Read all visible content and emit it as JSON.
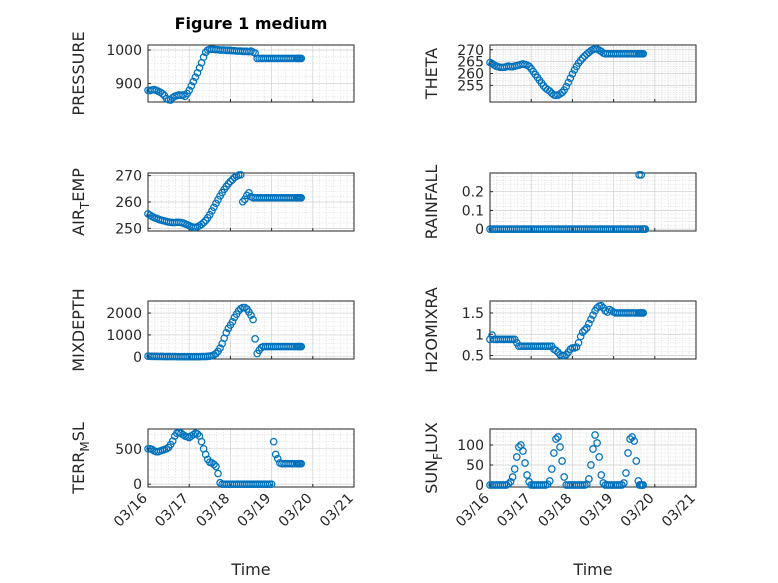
{
  "figure_title": "Figure 1 medium",
  "xlabel": "Time",
  "xtick_labels": [
    "03/16",
    "03/17",
    "03/18",
    "03/19",
    "03/20",
    "03/21"
  ],
  "colors": {
    "marker": "#0072BD",
    "axis": "#262626",
    "grid": "#dfdfdf"
  },
  "chart_data": [
    {
      "type": "scatter",
      "ylabel": "PRESSURE",
      "ylim": [
        845,
        1015
      ],
      "yticks": [
        900,
        1000
      ],
      "x_unit": "days since 03/16",
      "xlim": [
        0,
        5
      ],
      "x": [
        0.0,
        0.05,
        0.1,
        0.15,
        0.2,
        0.25,
        0.3,
        0.35,
        0.4,
        0.45,
        0.5,
        0.55,
        0.6,
        0.65,
        0.7,
        0.75,
        0.8,
        0.85,
        0.9,
        0.95,
        1.0,
        1.05,
        1.1,
        1.15,
        1.2,
        1.25,
        1.3,
        1.35,
        1.4,
        1.45,
        1.5,
        1.55,
        1.6,
        1.65,
        1.7,
        1.75,
        1.8,
        1.85,
        1.9,
        1.95,
        2.0,
        2.05,
        2.1,
        2.15,
        2.2,
        2.25,
        2.3,
        2.35,
        2.4,
        2.45,
        2.5,
        2.55,
        2.6,
        2.65,
        2.7,
        2.75,
        2.8,
        2.85,
        2.9,
        2.95,
        3.0,
        3.05,
        3.1,
        3.15,
        3.2,
        3.25,
        3.3,
        3.35,
        3.4,
        3.45,
        3.5,
        3.55,
        3.6,
        3.63,
        3.66,
        3.69,
        3.72
      ],
      "y": [
        880,
        879,
        881,
        882,
        880,
        877,
        874,
        870,
        864,
        855,
        852,
        851,
        858,
        862,
        864,
        866,
        865,
        866,
        862,
        870,
        880,
        893,
        906,
        919,
        932,
        947,
        962,
        979,
        993,
        1000,
        1002,
        1002,
        1002,
        1001,
        1001,
        1000,
        1000,
        1000,
        999,
        999,
        999,
        998,
        998,
        997,
        997,
        997,
        996,
        996,
        996,
        995,
        997,
        994,
        991,
        975,
        975,
        975,
        975,
        975,
        975,
        975,
        975,
        975,
        975,
        975,
        975,
        975,
        975,
        975,
        975,
        975,
        975,
        975,
        975,
        975,
        975,
        975,
        975
      ]
    },
    {
      "type": "scatter",
      "ylabel": "THETA",
      "ylim": [
        248,
        272
      ],
      "yticks": [
        255,
        260,
        265,
        270
      ],
      "x_unit": "days since 03/16",
      "xlim": [
        0,
        5
      ],
      "x": [
        0.0,
        0.05,
        0.1,
        0.15,
        0.2,
        0.25,
        0.3,
        0.35,
        0.4,
        0.45,
        0.5,
        0.55,
        0.6,
        0.65,
        0.7,
        0.75,
        0.8,
        0.85,
        0.9,
        0.95,
        1.0,
        1.05,
        1.1,
        1.15,
        1.2,
        1.25,
        1.3,
        1.35,
        1.4,
        1.45,
        1.5,
        1.55,
        1.6,
        1.65,
        1.7,
        1.75,
        1.8,
        1.85,
        1.9,
        1.95,
        2.0,
        2.05,
        2.1,
        2.15,
        2.2,
        2.25,
        2.3,
        2.35,
        2.4,
        2.45,
        2.5,
        2.55,
        2.6,
        2.65,
        2.7,
        2.75,
        2.8,
        2.85,
        2.9,
        2.95,
        3.0,
        3.05,
        3.1,
        3.15,
        3.2,
        3.25,
        3.3,
        3.35,
        3.4,
        3.45,
        3.5,
        3.55,
        3.6,
        3.63,
        3.66,
        3.69,
        3.72
      ],
      "y": [
        264.6,
        264.2,
        263.6,
        263.1,
        262.8,
        262.6,
        262.6,
        262.6,
        262.9,
        263.1,
        262.8,
        262.9,
        263.1,
        263.3,
        263.5,
        263.8,
        264.0,
        263.8,
        263.5,
        263.0,
        262.0,
        260.8,
        259.6,
        258.4,
        257.2,
        256.0,
        254.8,
        253.8,
        253.2,
        252.6,
        251.7,
        251.0,
        250.8,
        250.9,
        251.4,
        252.0,
        253.0,
        254.5,
        256.2,
        258.0,
        259.8,
        261.5,
        263.0,
        264.4,
        265.5,
        266.5,
        267.4,
        268.2,
        268.9,
        269.6,
        270.1,
        270.4,
        270.3,
        269.8,
        269.3,
        268.6,
        268.3,
        268.3,
        268.3,
        268.3,
        268.3,
        268.3,
        268.3,
        268.3,
        268.3,
        268.3,
        268.3,
        268.3,
        268.3,
        268.3,
        268.3,
        268.3,
        268.3,
        268.3,
        268.3,
        268.3,
        268.3
      ]
    },
    {
      "type": "scatter",
      "ylabel": "AIR_TEMP",
      "ylim": [
        249,
        271
      ],
      "yticks": [
        250,
        260,
        270
      ],
      "x_unit": "days since 03/16",
      "xlim": [
        0,
        5
      ],
      "x": [
        0.0,
        0.05,
        0.1,
        0.15,
        0.2,
        0.25,
        0.3,
        0.35,
        0.4,
        0.45,
        0.5,
        0.55,
        0.6,
        0.65,
        0.7,
        0.75,
        0.8,
        0.85,
        0.9,
        0.95,
        1.0,
        1.05,
        1.1,
        1.15,
        1.2,
        1.25,
        1.3,
        1.35,
        1.4,
        1.45,
        1.5,
        1.55,
        1.6,
        1.65,
        1.7,
        1.75,
        1.8,
        1.85,
        1.9,
        1.95,
        2.0,
        2.05,
        2.1,
        2.15,
        2.2,
        2.25,
        2.3,
        2.35,
        2.4,
        2.45,
        2.5,
        2.55,
        2.6,
        2.65,
        2.7,
        2.75,
        2.8,
        2.85,
        2.9,
        2.95,
        3.0,
        3.05,
        3.1,
        3.15,
        3.2,
        3.25,
        3.3,
        3.35,
        3.4,
        3.45,
        3.5,
        3.55,
        3.6,
        3.63,
        3.66,
        3.69,
        3.72
      ],
      "y": [
        255.5,
        255.0,
        254.5,
        254.1,
        253.8,
        253.5,
        253.2,
        253.0,
        252.8,
        252.6,
        252.4,
        252.3,
        252.2,
        252.2,
        252.3,
        252.3,
        252.2,
        252.0,
        251.7,
        251.4,
        251.0,
        250.7,
        250.4,
        250.4,
        250.6,
        251.0,
        251.5,
        252.2,
        253.0,
        254.0,
        255.2,
        256.6,
        258.0,
        259.5,
        260.9,
        262.3,
        263.6,
        264.8,
        265.9,
        266.9,
        267.8,
        268.5,
        269.3,
        269.8,
        270.2,
        270.3,
        260.1,
        261.0,
        262.5,
        263.5,
        262.0,
        261.6,
        261.6,
        261.6,
        261.6,
        261.6,
        261.6,
        261.6,
        261.6,
        261.6,
        261.6,
        261.6,
        261.6,
        261.6,
        261.6,
        261.6,
        261.6,
        261.6,
        261.6,
        261.6,
        261.6,
        261.6,
        261.6,
        261.6,
        261.6,
        261.6,
        261.6
      ]
    },
    {
      "type": "scatter",
      "ylabel": "RAINFALL",
      "ylim": [
        -0.01,
        0.3
      ],
      "yticks": [
        0,
        0.1,
        0.2
      ],
      "x_unit": "days since 03/16",
      "xlim": [
        0,
        5
      ],
      "x": [
        0.0,
        0.05,
        0.1,
        0.15,
        0.2,
        0.25,
        0.3,
        0.35,
        0.4,
        0.45,
        0.5,
        0.55,
        0.6,
        0.65,
        0.7,
        0.75,
        0.8,
        0.85,
        0.9,
        0.95,
        1.0,
        1.05,
        1.1,
        1.15,
        1.2,
        1.25,
        1.3,
        1.35,
        1.4,
        1.45,
        1.5,
        1.55,
        1.6,
        1.65,
        1.7,
        1.75,
        1.8,
        1.85,
        1.9,
        1.95,
        2.0,
        2.05,
        2.1,
        2.15,
        2.2,
        2.25,
        2.3,
        2.35,
        2.4,
        2.45,
        2.5,
        2.55,
        2.6,
        2.65,
        2.7,
        2.75,
        2.8,
        2.85,
        2.9,
        2.95,
        3.0,
        3.05,
        3.1,
        3.15,
        3.2,
        3.25,
        3.3,
        3.35,
        3.4,
        3.45,
        3.5,
        3.55,
        3.6,
        3.62,
        3.65,
        3.67,
        3.7,
        3.72,
        3.75,
        3.77
      ],
      "y": [
        0,
        0,
        0,
        0,
        0,
        0,
        0,
        0,
        0,
        0,
        0,
        0,
        0,
        0,
        0,
        0,
        0,
        0,
        0,
        0,
        0,
        0,
        0,
        0,
        0,
        0,
        0,
        0,
        0,
        0,
        0,
        0,
        0,
        0,
        0,
        0,
        0,
        0,
        0,
        0,
        0,
        0,
        0,
        0,
        0,
        0,
        0,
        0,
        0,
        0,
        0,
        0,
        0,
        0,
        0,
        0,
        0,
        0,
        0,
        0,
        0,
        0,
        0,
        0,
        0,
        0,
        0,
        0,
        0,
        0,
        0,
        0,
        0,
        0.29,
        0,
        0.29,
        0,
        0,
        0,
        0
      ]
    },
    {
      "type": "scatter",
      "ylabel": "MIXDEPTH",
      "ylim": [
        -100,
        2550
      ],
      "yticks": [
        0,
        1000,
        2000
      ],
      "x_unit": "days since 03/16",
      "xlim": [
        0,
        5
      ],
      "x": [
        0.0,
        0.05,
        0.1,
        0.15,
        0.2,
        0.25,
        0.3,
        0.35,
        0.4,
        0.45,
        0.5,
        0.55,
        0.6,
        0.65,
        0.7,
        0.75,
        0.8,
        0.85,
        0.9,
        0.95,
        1.0,
        1.05,
        1.1,
        1.15,
        1.2,
        1.25,
        1.3,
        1.35,
        1.4,
        1.45,
        1.5,
        1.55,
        1.6,
        1.65,
        1.7,
        1.75,
        1.8,
        1.85,
        1.9,
        1.95,
        2.0,
        2.05,
        2.1,
        2.15,
        2.2,
        2.25,
        2.3,
        2.35,
        2.4,
        2.45,
        2.5,
        2.55,
        2.6,
        2.65,
        2.7,
        2.75,
        2.8,
        2.85,
        2.9,
        2.95,
        3.0,
        3.05,
        3.1,
        3.15,
        3.2,
        3.25,
        3.3,
        3.35,
        3.4,
        3.45,
        3.5,
        3.55,
        3.6,
        3.63,
        3.66,
        3.69,
        3.72
      ],
      "y": [
        30,
        25,
        20,
        20,
        20,
        15,
        15,
        15,
        10,
        10,
        10,
        10,
        10,
        10,
        5,
        5,
        5,
        5,
        5,
        5,
        5,
        5,
        5,
        5,
        5,
        5,
        10,
        10,
        10,
        20,
        30,
        50,
        90,
        150,
        250,
        400,
        600,
        850,
        1100,
        1300,
        1450,
        1600,
        1800,
        1950,
        2100,
        2200,
        2250,
        2250,
        2180,
        2050,
        1900,
        1700,
        820,
        150,
        300,
        420,
        470,
        470,
        470,
        470,
        470,
        470,
        470,
        470,
        470,
        470,
        470,
        470,
        470,
        470,
        470,
        470,
        470,
        470,
        470,
        470,
        470
      ]
    },
    {
      "type": "scatter",
      "ylabel": "H2OMIXRA",
      "ylim": [
        0.42,
        1.78
      ],
      "yticks": [
        0.5,
        1,
        1.5
      ],
      "x_unit": "days since 03/16",
      "xlim": [
        0,
        5
      ],
      "x": [
        0.0,
        0.05,
        0.1,
        0.15,
        0.2,
        0.25,
        0.3,
        0.35,
        0.4,
        0.45,
        0.5,
        0.55,
        0.6,
        0.65,
        0.7,
        0.75,
        0.8,
        0.85,
        0.9,
        0.95,
        1.0,
        1.05,
        1.1,
        1.15,
        1.2,
        1.25,
        1.3,
        1.35,
        1.4,
        1.45,
        1.5,
        1.55,
        1.6,
        1.65,
        1.7,
        1.75,
        1.8,
        1.85,
        1.9,
        1.95,
        2.0,
        2.05,
        2.1,
        2.15,
        2.2,
        2.25,
        2.3,
        2.35,
        2.4,
        2.45,
        2.5,
        2.55,
        2.6,
        2.65,
        2.7,
        2.75,
        2.8,
        2.85,
        2.9,
        2.95,
        3.0,
        3.05,
        3.1,
        3.15,
        3.2,
        3.25,
        3.3,
        3.35,
        3.4,
        3.45,
        3.5,
        3.55,
        3.6,
        3.63,
        3.66,
        3.69,
        3.72
      ],
      "y": [
        0.88,
        0.98,
        0.88,
        0.88,
        0.88,
        0.88,
        0.88,
        0.88,
        0.88,
        0.88,
        0.88,
        0.88,
        0.88,
        0.8,
        0.72,
        0.72,
        0.72,
        0.72,
        0.72,
        0.72,
        0.72,
        0.72,
        0.72,
        0.72,
        0.72,
        0.72,
        0.72,
        0.72,
        0.72,
        0.72,
        0.72,
        0.65,
        0.62,
        0.58,
        0.52,
        0.5,
        0.5,
        0.52,
        0.58,
        0.65,
        0.68,
        0.68,
        0.7,
        0.8,
        0.95,
        1.05,
        1.1,
        1.15,
        1.25,
        1.35,
        1.45,
        1.55,
        1.62,
        1.66,
        1.67,
        1.62,
        1.55,
        1.52,
        1.58,
        1.55,
        1.52,
        1.5,
        1.5,
        1.5,
        1.5,
        1.5,
        1.5,
        1.5,
        1.5,
        1.5,
        1.5,
        1.5,
        1.5,
        1.5,
        1.5,
        1.5,
        1.5
      ]
    },
    {
      "type": "scatter",
      "ylabel": "TERR_MSL",
      "ylim": [
        -40,
        780
      ],
      "yticks": [
        0,
        500
      ],
      "x_unit": "days since 03/16",
      "xlim": [
        0,
        5
      ],
      "x": [
        0.0,
        0.05,
        0.1,
        0.15,
        0.2,
        0.25,
        0.3,
        0.35,
        0.4,
        0.45,
        0.5,
        0.55,
        0.6,
        0.65,
        0.7,
        0.75,
        0.8,
        0.85,
        0.9,
        0.95,
        1.0,
        1.05,
        1.1,
        1.15,
        1.2,
        1.25,
        1.3,
        1.35,
        1.4,
        1.45,
        1.5,
        1.55,
        1.6,
        1.65,
        1.7,
        1.75,
        1.8,
        1.85,
        1.9,
        1.95,
        2.0,
        2.05,
        2.1,
        2.15,
        2.2,
        2.25,
        2.3,
        2.35,
        2.4,
        2.45,
        2.5,
        2.55,
        2.6,
        2.65,
        2.7,
        2.75,
        2.8,
        2.85,
        2.9,
        2.95,
        3.0,
        3.05,
        3.1,
        3.15,
        3.2,
        3.25,
        3.3,
        3.35,
        3.4,
        3.45,
        3.5,
        3.55,
        3.6,
        3.63,
        3.66,
        3.69,
        3.72
      ],
      "y": [
        500,
        500,
        490,
        470,
        460,
        460,
        470,
        480,
        490,
        500,
        520,
        560,
        610,
        680,
        720,
        730,
        720,
        700,
        680,
        670,
        660,
        680,
        700,
        720,
        710,
        680,
        600,
        500,
        420,
        350,
        310,
        300,
        280,
        250,
        150,
        20,
        0,
        0,
        0,
        0,
        0,
        0,
        0,
        0,
        0,
        0,
        0,
        0,
        0,
        0,
        0,
        0,
        0,
        0,
        0,
        0,
        0,
        0,
        0,
        0,
        0,
        600,
        420,
        360,
        300,
        290,
        290,
        290,
        290,
        290,
        290,
        290,
        290,
        290,
        290,
        290,
        290
      ]
    },
    {
      "type": "scatter",
      "ylabel": "SUN_FLUX",
      "ylim": [
        -5,
        140
      ],
      "yticks": [
        0,
        50,
        100
      ],
      "x_unit": "days since 03/16",
      "xlim": [
        0,
        5
      ],
      "x": [
        0.0,
        0.05,
        0.1,
        0.15,
        0.2,
        0.25,
        0.3,
        0.35,
        0.4,
        0.45,
        0.5,
        0.55,
        0.6,
        0.65,
        0.7,
        0.75,
        0.8,
        0.85,
        0.9,
        0.95,
        1.0,
        1.05,
        1.1,
        1.15,
        1.2,
        1.25,
        1.3,
        1.35,
        1.4,
        1.45,
        1.5,
        1.55,
        1.6,
        1.65,
        1.7,
        1.75,
        1.8,
        1.85,
        1.9,
        1.95,
        2.0,
        2.05,
        2.1,
        2.15,
        2.2,
        2.25,
        2.3,
        2.35,
        2.4,
        2.45,
        2.5,
        2.55,
        2.6,
        2.65,
        2.7,
        2.75,
        2.8,
        2.85,
        2.9,
        2.95,
        3.0,
        3.05,
        3.1,
        3.15,
        3.2,
        3.25,
        3.3,
        3.35,
        3.4,
        3.45,
        3.5,
        3.55,
        3.6,
        3.63,
        3.66,
        3.69,
        3.72
      ],
      "y": [
        0,
        0,
        0,
        0,
        0,
        0,
        0,
        0,
        0,
        3,
        8,
        20,
        40,
        70,
        95,
        100,
        85,
        55,
        25,
        8,
        0,
        0,
        0,
        0,
        0,
        0,
        0,
        0,
        2,
        10,
        40,
        80,
        115,
        120,
        95,
        60,
        20,
        0,
        0,
        0,
        0,
        0,
        0,
        0,
        0,
        0,
        0,
        2,
        15,
        50,
        90,
        125,
        105,
        70,
        25,
        5,
        0,
        0,
        0,
        0,
        0,
        0,
        0,
        0,
        0,
        5,
        30,
        80,
        115,
        120,
        110,
        60,
        10,
        0,
        0,
        0,
        0
      ]
    }
  ]
}
